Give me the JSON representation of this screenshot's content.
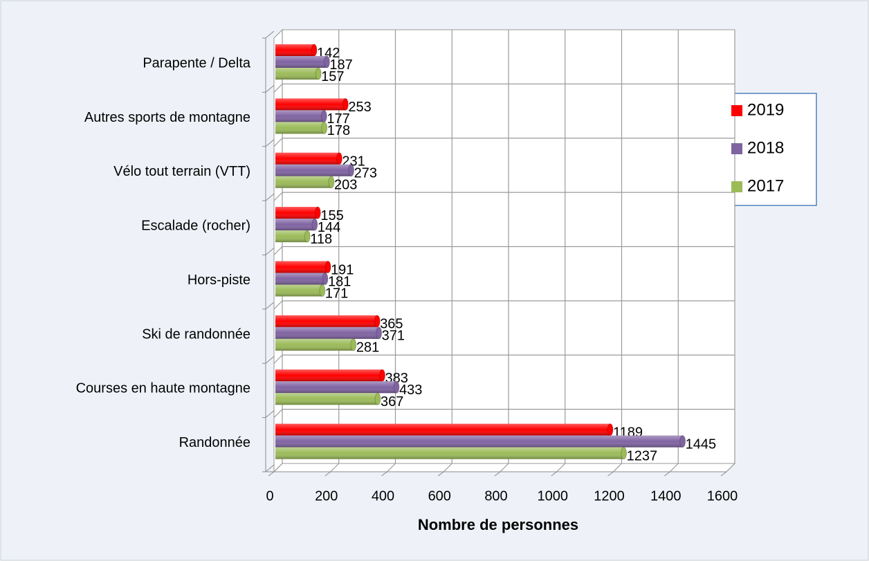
{
  "chart_data": {
    "type": "bar",
    "orientation": "horizontal",
    "x_label": "Nombre de personnes",
    "categories": [
      "Parapente / Delta",
      "Autres sports de montagne",
      "Vélo tout terrain (VTT)",
      "Escalade (rocher)",
      "Hors-piste",
      "Ski de randonnée",
      "Courses en haute montagne",
      "Randonnée"
    ],
    "series": [
      {
        "name": "2019",
        "color": "#ff0000",
        "values": [
          142,
          253,
          231,
          155,
          191,
          365,
          383,
          1189
        ]
      },
      {
        "name": "2018",
        "color": "#8064a2",
        "values": [
          187,
          177,
          273,
          144,
          181,
          371,
          433,
          1445
        ]
      },
      {
        "name": "2017",
        "color": "#9bbb59",
        "values": [
          157,
          178,
          203,
          118,
          171,
          281,
          367,
          1237
        ]
      }
    ],
    "xlim": [
      0,
      1600
    ],
    "xticks": [
      0,
      200,
      400,
      600,
      800,
      1000,
      1200,
      1400,
      1600
    ],
    "grid": true,
    "legend": "right"
  }
}
